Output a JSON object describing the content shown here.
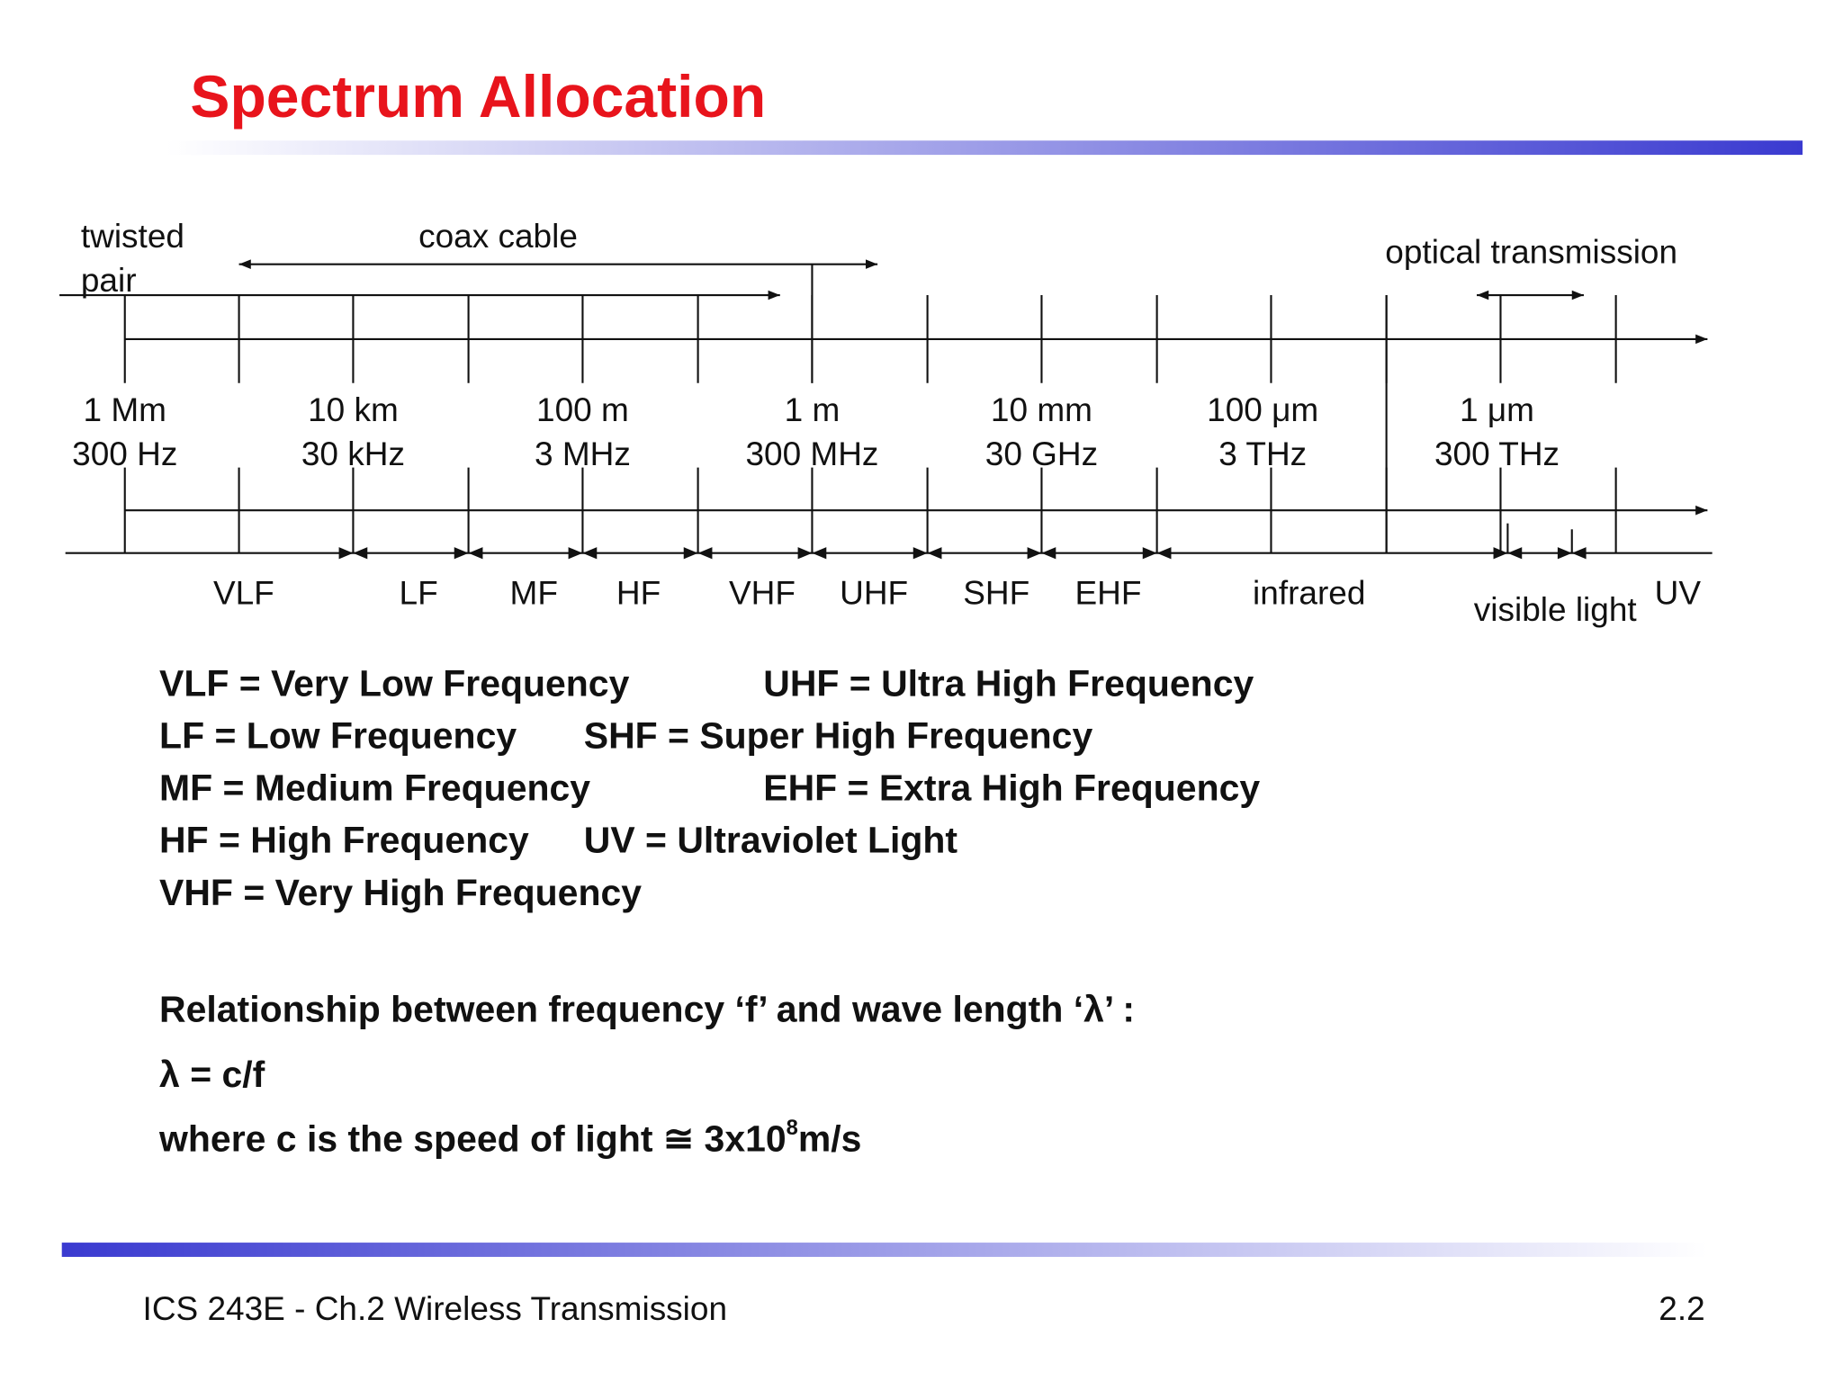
{
  "header": {
    "title": "Spectrum Allocation"
  },
  "media": {
    "twisted_pair": [
      "twisted",
      "pair"
    ],
    "coax": "coax cable",
    "optical": "optical transmission"
  },
  "scale": [
    {
      "wavelength": "1 Mm",
      "frequency": "300 Hz"
    },
    {
      "wavelength": "10 km",
      "frequency": "30 kHz"
    },
    {
      "wavelength": "100 m",
      "frequency": "3 MHz"
    },
    {
      "wavelength": "1 m",
      "frequency": "300 MHz"
    },
    {
      "wavelength": "10 mm",
      "frequency": "30 GHz"
    },
    {
      "wavelength": "100 μm",
      "frequency": "3 THz"
    },
    {
      "wavelength": "1 μm",
      "frequency": "300 THz"
    }
  ],
  "bands": [
    "VLF",
    "LF",
    "MF",
    "HF",
    "VHF",
    "UHF",
    "SHF",
    "EHF",
    "infrared",
    "visible light",
    "UV"
  ],
  "abbreviations": [
    [
      "VLF = Very Low Frequency",
      "UHF = Ultra High Frequency"
    ],
    [
      "LF = Low Frequency",
      "SHF = Super High Frequency"
    ],
    [
      "MF = Medium Frequency",
      "EHF = Extra High Frequency"
    ],
    [
      "HF = High Frequency",
      "UV = Ultraviolet Light"
    ],
    [
      "VHF = Very High Frequency"
    ]
  ],
  "relationship": {
    "heading": "Relationship between frequency ‘f’ and wave length ‘λ’ :",
    "formula": "λ  = c/f",
    "note": [
      "where c is the speed of light ≅ 3x10",
      "8",
      "m/s"
    ]
  },
  "footer": {
    "course": "ICS 243E - Ch.2 Wireless Transmission",
    "page": "2.2"
  }
}
